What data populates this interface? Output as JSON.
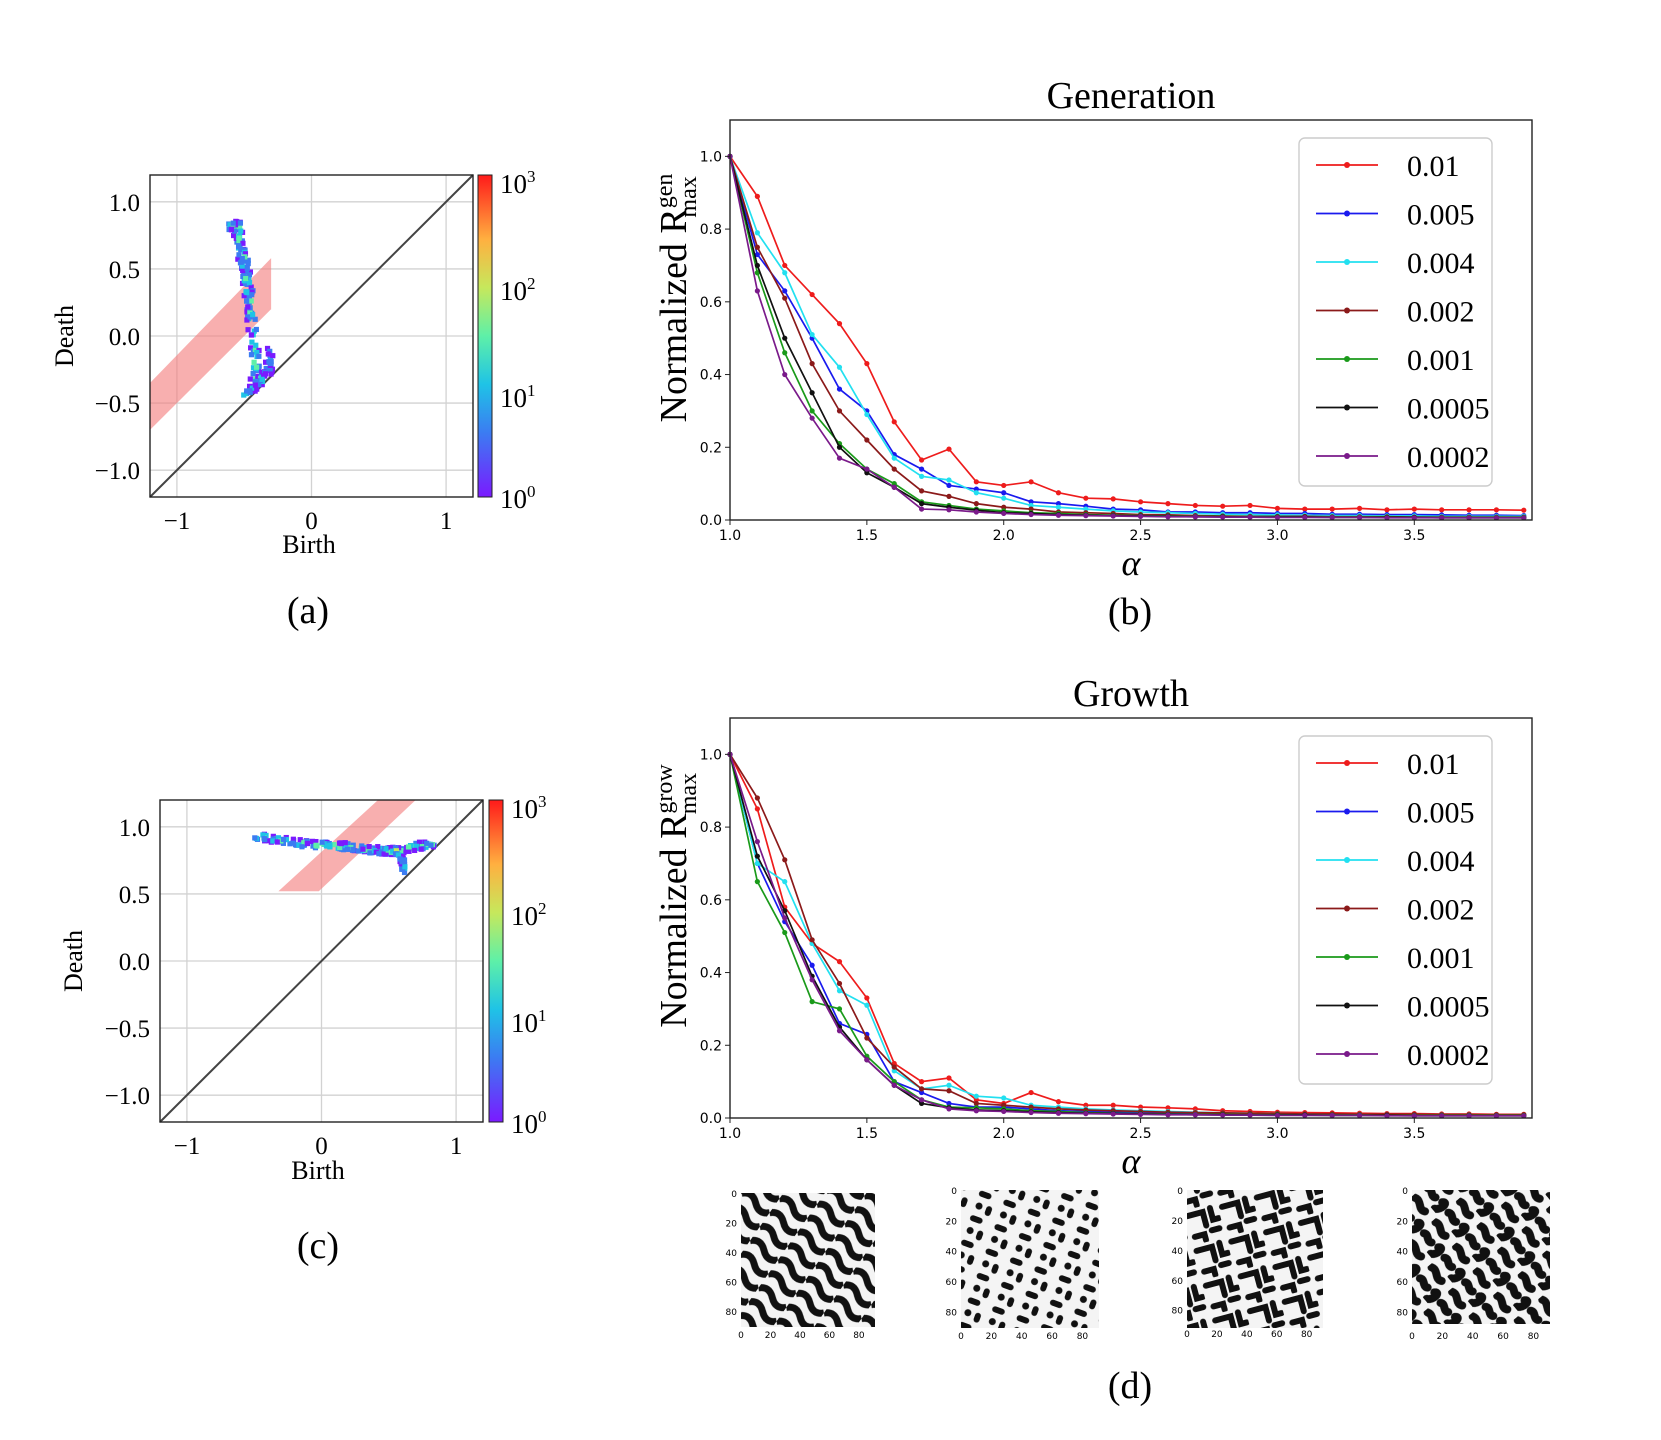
{
  "captions": {
    "a": "(a)",
    "b": "(b)",
    "c": "(c)",
    "d": "(d)"
  },
  "colorbar": {
    "ticks": [
      "10",
      "10",
      "10",
      "10"
    ],
    "exps": [
      "3",
      "2",
      "1",
      "0"
    ]
  },
  "pattern_tick_labels": [
    "0",
    "20",
    "40",
    "60",
    "80"
  ],
  "chart_data": [
    {
      "id": "a",
      "type": "heatmap",
      "subtype": "persistence-diagram",
      "xlabel": "Birth",
      "ylabel": "Death",
      "xlim": [
        -1.2,
        1.2
      ],
      "ylim": [
        -1.2,
        1.2
      ],
      "xticks": [
        {
          "v": -1,
          "label": "−1"
        },
        {
          "v": 0,
          "label": "0"
        },
        {
          "v": 1,
          "label": "1"
        }
      ],
      "yticks": [
        {
          "v": 1.0,
          "label": "1.0"
        },
        {
          "v": 0.5,
          "label": "0.5"
        },
        {
          "v": 0.0,
          "label": "0.0"
        },
        {
          "v": -0.5,
          "label": "−0.5"
        },
        {
          "v": -1.0,
          "label": "−1.0"
        }
      ],
      "grid": true,
      "colorbar": "log",
      "crange": [
        1,
        1000
      ],
      "band": [
        [
          -1.2,
          -0.7
        ],
        [
          -1.2,
          -0.35
        ],
        [
          -0.3,
          0.58
        ],
        [
          -0.3,
          0.2
        ]
      ],
      "clusters": [
        {
          "path": [
            [
              -0.6,
              0.82
            ],
            [
              -0.55,
              0.82
            ],
            [
              -0.54,
              0.7
            ],
            [
              -0.5,
              0.55
            ],
            [
              -0.48,
              0.4
            ],
            [
              -0.45,
              0.2
            ],
            [
              -0.43,
              0.0
            ],
            [
              -0.42,
              -0.2
            ],
            [
              -0.42,
              -0.38
            ]
          ],
          "spread": 0.035,
          "n": 150,
          "level": 1.4
        },
        {
          "path": [
            [
              -0.5,
              -0.45
            ],
            [
              -0.42,
              -0.38
            ],
            [
              -0.32,
              -0.25
            ],
            [
              -0.3,
              -0.1
            ]
          ],
          "spread": 0.03,
          "n": 50,
          "level": 1.0
        }
      ]
    },
    {
      "id": "b",
      "type": "line",
      "title": "Generation",
      "xlabel": "α",
      "ylabel": "Normalized R",
      "ylabel_sub": "max",
      "ylabel_sup": "gen",
      "xlim": [
        1.0,
        3.93
      ],
      "ylim": [
        0,
        1.1
      ],
      "xticks": [
        1.0,
        1.5,
        2.0,
        2.5,
        3.0,
        3.5
      ],
      "yticks": [
        0.0,
        0.2,
        0.4,
        0.6,
        0.8,
        1.0
      ],
      "legend_position": "top-right",
      "x": [
        1.0,
        1.1,
        1.2,
        1.3,
        1.4,
        1.5,
        1.6,
        1.7,
        1.8,
        1.9,
        2.0,
        2.1,
        2.2,
        2.3,
        2.4,
        2.5,
        2.6,
        2.7,
        2.8,
        2.9,
        3.0,
        3.1,
        3.2,
        3.3,
        3.4,
        3.5,
        3.6,
        3.7,
        3.8,
        3.9
      ],
      "series": [
        {
          "name": "0.01",
          "color": "#ee1c1c",
          "values": [
            1.0,
            0.89,
            0.7,
            0.62,
            0.54,
            0.43,
            0.27,
            0.165,
            0.195,
            0.105,
            0.095,
            0.105,
            0.075,
            0.06,
            0.058,
            0.05,
            0.045,
            0.04,
            0.038,
            0.04,
            0.032,
            0.03,
            0.03,
            0.032,
            0.028,
            0.03,
            0.028,
            0.028,
            0.028,
            0.027
          ]
        },
        {
          "name": "0.005",
          "color": "#1a1aee",
          "values": [
            1.0,
            0.73,
            0.63,
            0.5,
            0.36,
            0.3,
            0.18,
            0.14,
            0.095,
            0.085,
            0.075,
            0.05,
            0.045,
            0.038,
            0.03,
            0.028,
            0.022,
            0.022,
            0.02,
            0.02,
            0.018,
            0.018,
            0.016,
            0.016,
            0.015,
            0.015,
            0.014,
            0.013,
            0.013,
            0.012
          ]
        },
        {
          "name": "0.004",
          "color": "#22e0f0",
          "values": [
            1.0,
            0.79,
            0.68,
            0.51,
            0.42,
            0.29,
            0.17,
            0.12,
            0.11,
            0.075,
            0.06,
            0.04,
            0.035,
            0.03,
            0.025,
            0.022,
            0.02,
            0.018,
            0.016,
            0.015,
            0.014,
            0.013,
            0.012,
            0.012,
            0.011,
            0.011,
            0.01,
            0.01,
            0.01,
            0.01
          ]
        },
        {
          "name": "0.002",
          "color": "#8b1a1a",
          "values": [
            1.0,
            0.75,
            0.61,
            0.43,
            0.3,
            0.22,
            0.14,
            0.08,
            0.065,
            0.045,
            0.035,
            0.03,
            0.022,
            0.02,
            0.018,
            0.015,
            0.014,
            0.012,
            0.011,
            0.01,
            0.01,
            0.01,
            0.009,
            0.009,
            0.009,
            0.008,
            0.008,
            0.008,
            0.008,
            0.008
          ]
        },
        {
          "name": "0.001",
          "color": "#1a9a1a",
          "values": [
            1.0,
            0.68,
            0.46,
            0.3,
            0.21,
            0.14,
            0.1,
            0.05,
            0.04,
            0.03,
            0.025,
            0.02,
            0.018,
            0.015,
            0.013,
            0.012,
            0.011,
            0.01,
            0.01,
            0.009,
            0.009,
            0.008,
            0.008,
            0.008,
            0.008,
            0.007,
            0.007,
            0.007,
            0.007,
            0.007
          ]
        },
        {
          "name": "0.0005",
          "color": "#111111",
          "values": [
            1.0,
            0.7,
            0.5,
            0.35,
            0.2,
            0.13,
            0.09,
            0.045,
            0.035,
            0.027,
            0.02,
            0.018,
            0.015,
            0.013,
            0.012,
            0.011,
            0.01,
            0.009,
            0.009,
            0.008,
            0.008,
            0.008,
            0.007,
            0.007,
            0.007,
            0.007,
            0.006,
            0.006,
            0.006,
            0.006
          ]
        },
        {
          "name": "0.0002",
          "color": "#7a1a8a",
          "values": [
            1.0,
            0.63,
            0.4,
            0.28,
            0.17,
            0.14,
            0.09,
            0.03,
            0.028,
            0.022,
            0.018,
            0.015,
            0.013,
            0.012,
            0.011,
            0.01,
            0.009,
            0.009,
            0.008,
            0.008,
            0.007,
            0.007,
            0.007,
            0.007,
            0.006,
            0.006,
            0.006,
            0.006,
            0.006,
            0.006
          ]
        }
      ]
    },
    {
      "id": "c",
      "type": "heatmap",
      "subtype": "persistence-diagram",
      "xlabel": "Birth",
      "ylabel": "Death",
      "xlim": [
        -1.2,
        1.2
      ],
      "ylim": [
        -1.2,
        1.2
      ],
      "xticks": [
        {
          "v": -1,
          "label": "−1"
        },
        {
          "v": 0,
          "label": "0"
        },
        {
          "v": 1,
          "label": "1"
        }
      ],
      "yticks": [
        {
          "v": 1.0,
          "label": "1.0"
        },
        {
          "v": 0.5,
          "label": "0.5"
        },
        {
          "v": 0.0,
          "label": "0.0"
        },
        {
          "v": -0.5,
          "label": "−0.5"
        },
        {
          "v": -1.0,
          "label": "−1.0"
        }
      ],
      "grid": true,
      "colorbar": "log",
      "crange": [
        1,
        1000
      ],
      "band": [
        [
          -0.32,
          0.52
        ],
        [
          -0.02,
          0.52
        ],
        [
          0.7,
          1.2
        ],
        [
          0.42,
          1.2
        ]
      ],
      "clusters": [
        {
          "path": [
            [
              -0.48,
              0.93
            ],
            [
              -0.3,
              0.9
            ],
            [
              -0.1,
              0.87
            ],
            [
              0.1,
              0.86
            ],
            [
              0.3,
              0.84
            ],
            [
              0.45,
              0.82
            ],
            [
              0.55,
              0.82
            ],
            [
              0.7,
              0.85
            ],
            [
              0.82,
              0.87
            ]
          ],
          "spread": 0.028,
          "n": 190,
          "level": 1.45
        },
        {
          "path": [
            [
              0.55,
              0.82
            ],
            [
              0.6,
              0.75
            ],
            [
              0.62,
              0.66
            ]
          ],
          "spread": 0.022,
          "n": 30,
          "level": 0.9
        }
      ]
    },
    {
      "id": "d",
      "type": "line",
      "title": "Growth",
      "xlabel": "α",
      "ylabel": "Normalized R",
      "ylabel_sub": "max",
      "ylabel_sup": "grow",
      "xlim": [
        1.0,
        3.93
      ],
      "ylim": [
        0,
        1.1
      ],
      "xticks": [
        1.0,
        1.5,
        2.0,
        2.5,
        3.0,
        3.5
      ],
      "yticks": [
        0.0,
        0.2,
        0.4,
        0.6,
        0.8,
        1.0
      ],
      "legend_position": "top-right",
      "x": [
        1.0,
        1.1,
        1.2,
        1.3,
        1.4,
        1.5,
        1.6,
        1.7,
        1.8,
        1.9,
        2.0,
        2.1,
        2.2,
        2.3,
        2.4,
        2.5,
        2.6,
        2.7,
        2.8,
        2.9,
        3.0,
        3.1,
        3.2,
        3.3,
        3.4,
        3.5,
        3.6,
        3.7,
        3.8,
        3.9
      ],
      "series": [
        {
          "name": "0.01",
          "color": "#ee1c1c",
          "values": [
            1.0,
            0.85,
            0.58,
            0.48,
            0.43,
            0.33,
            0.15,
            0.1,
            0.11,
            0.05,
            0.04,
            0.07,
            0.045,
            0.035,
            0.035,
            0.03,
            0.028,
            0.025,
            0.02,
            0.018,
            0.016,
            0.015,
            0.014,
            0.013,
            0.012,
            0.012,
            0.011,
            0.011,
            0.01,
            0.01
          ]
        },
        {
          "name": "0.005",
          "color": "#1a1aee",
          "values": [
            1.0,
            0.7,
            0.54,
            0.42,
            0.26,
            0.23,
            0.1,
            0.07,
            0.04,
            0.03,
            0.03,
            0.025,
            0.02,
            0.018,
            0.016,
            0.014,
            0.013,
            0.012,
            0.011,
            0.01,
            0.01,
            0.009,
            0.009,
            0.008,
            0.008,
            0.008,
            0.007,
            0.007,
            0.007,
            0.007
          ]
        },
        {
          "name": "0.004",
          "color": "#22e0f0",
          "values": [
            1.0,
            0.7,
            0.65,
            0.48,
            0.35,
            0.31,
            0.13,
            0.08,
            0.09,
            0.06,
            0.055,
            0.035,
            0.03,
            0.025,
            0.022,
            0.02,
            0.018,
            0.016,
            0.014,
            0.013,
            0.012,
            0.011,
            0.01,
            0.01,
            0.01,
            0.009,
            0.009,
            0.009,
            0.008,
            0.008
          ]
        },
        {
          "name": "0.002",
          "color": "#8b1a1a",
          "values": [
            1.0,
            0.88,
            0.71,
            0.49,
            0.37,
            0.22,
            0.14,
            0.08,
            0.075,
            0.04,
            0.035,
            0.03,
            0.025,
            0.022,
            0.02,
            0.018,
            0.016,
            0.015,
            0.014,
            0.013,
            0.012,
            0.011,
            0.011,
            0.01,
            0.01,
            0.01,
            0.009,
            0.009,
            0.009,
            0.009
          ]
        },
        {
          "name": "0.001",
          "color": "#1a9a1a",
          "values": [
            1.0,
            0.65,
            0.51,
            0.32,
            0.3,
            0.17,
            0.1,
            0.05,
            0.03,
            0.028,
            0.025,
            0.02,
            0.018,
            0.015,
            0.013,
            0.012,
            0.011,
            0.01,
            0.01,
            0.009,
            0.009,
            0.008,
            0.008,
            0.008,
            0.007,
            0.007,
            0.007,
            0.007,
            0.007,
            0.007
          ]
        },
        {
          "name": "0.0005",
          "color": "#111111",
          "values": [
            1.0,
            0.72,
            0.57,
            0.39,
            0.25,
            0.16,
            0.09,
            0.04,
            0.028,
            0.022,
            0.02,
            0.017,
            0.015,
            0.013,
            0.012,
            0.011,
            0.01,
            0.009,
            0.009,
            0.008,
            0.008,
            0.008,
            0.007,
            0.007,
            0.007,
            0.006,
            0.006,
            0.006,
            0.006,
            0.006
          ]
        },
        {
          "name": "0.0002",
          "color": "#7a1a8a",
          "values": [
            1.0,
            0.76,
            0.55,
            0.38,
            0.24,
            0.16,
            0.09,
            0.05,
            0.025,
            0.02,
            0.018,
            0.015,
            0.013,
            0.012,
            0.011,
            0.01,
            0.009,
            0.009,
            0.008,
            0.008,
            0.007,
            0.007,
            0.007,
            0.007,
            0.006,
            0.006,
            0.006,
            0.006,
            0.006,
            0.006
          ]
        }
      ]
    }
  ]
}
